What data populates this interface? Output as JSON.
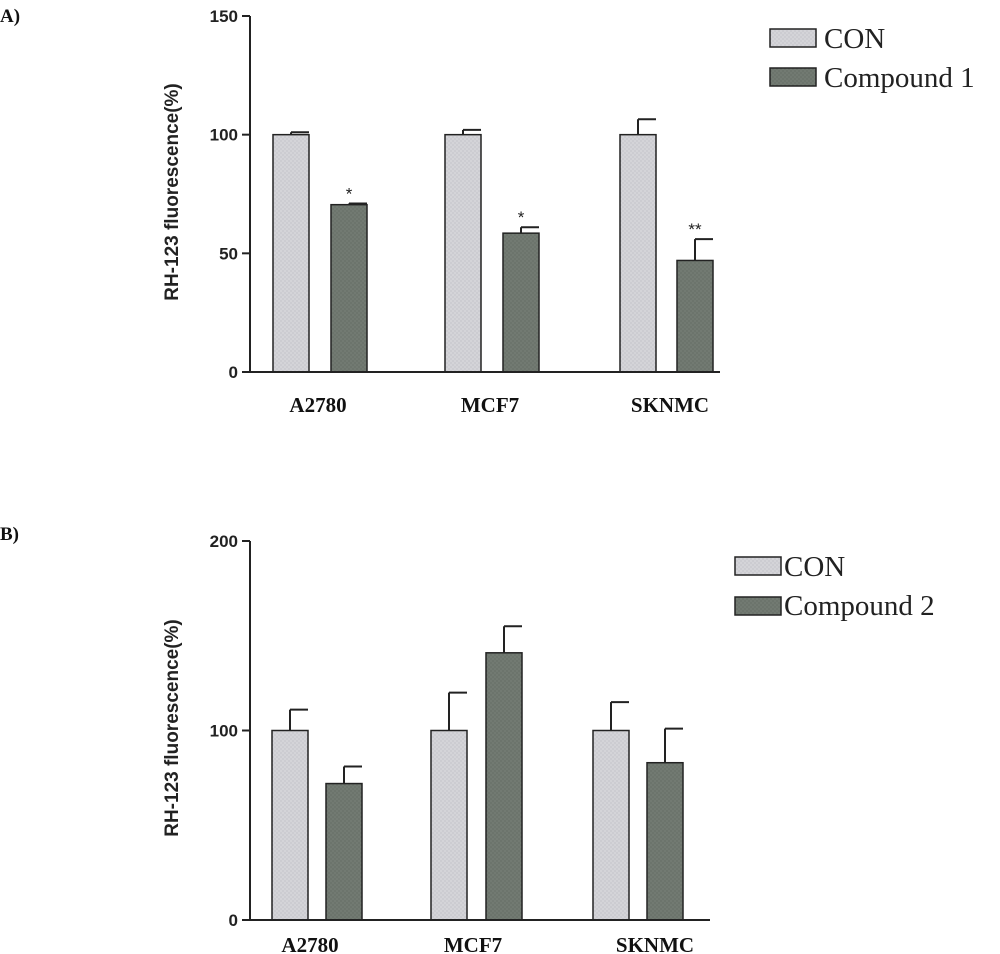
{
  "panels": [
    {
      "letter": "A)",
      "chart_data": {
        "type": "bar",
        "title": "",
        "xlabel": "",
        "ylabel": "RH-123 fluorescence(%)",
        "categories": [
          "A2780",
          "MCF7",
          "SKNMC"
        ],
        "ylim": [
          0,
          150
        ],
        "yticks": [
          0,
          50,
          100,
          150
        ],
        "grid": false,
        "legend_position": "top-right",
        "series": [
          {
            "name": "CON",
            "values": [
              100,
              100,
              100
            ],
            "errors": [
              1,
              2,
              6.5
            ],
            "significance": [
              "",
              "",
              ""
            ]
          },
          {
            "name": "Compound 1",
            "values": [
              70.5,
              58.5,
              47
            ],
            "errors": [
              0.5,
              2.5,
              9
            ],
            "significance": [
              "*",
              "*",
              "**"
            ]
          }
        ]
      }
    },
    {
      "letter": "B)",
      "chart_data": {
        "type": "bar",
        "title": "",
        "xlabel": "",
        "ylabel": "RH-123 fluorescence(%)",
        "categories": [
          "A2780",
          "MCF7",
          "SKNMC"
        ],
        "ylim": [
          0,
          200
        ],
        "yticks": [
          0,
          100,
          200
        ],
        "grid": false,
        "legend_position": "top-right",
        "series": [
          {
            "name": "CON",
            "values": [
              100,
              100,
              100
            ],
            "errors": [
              11,
              20,
              15
            ],
            "significance": [
              "",
              "",
              ""
            ]
          },
          {
            "name": "Compound 2",
            "values": [
              72,
              141,
              83
            ],
            "errors": [
              9,
              14,
              18
            ],
            "significance": [
              "",
              "",
              ""
            ]
          }
        ]
      }
    }
  ],
  "colors": {
    "con": "#d4d4d8",
    "compound": "#727a72",
    "axis": "#222222"
  }
}
